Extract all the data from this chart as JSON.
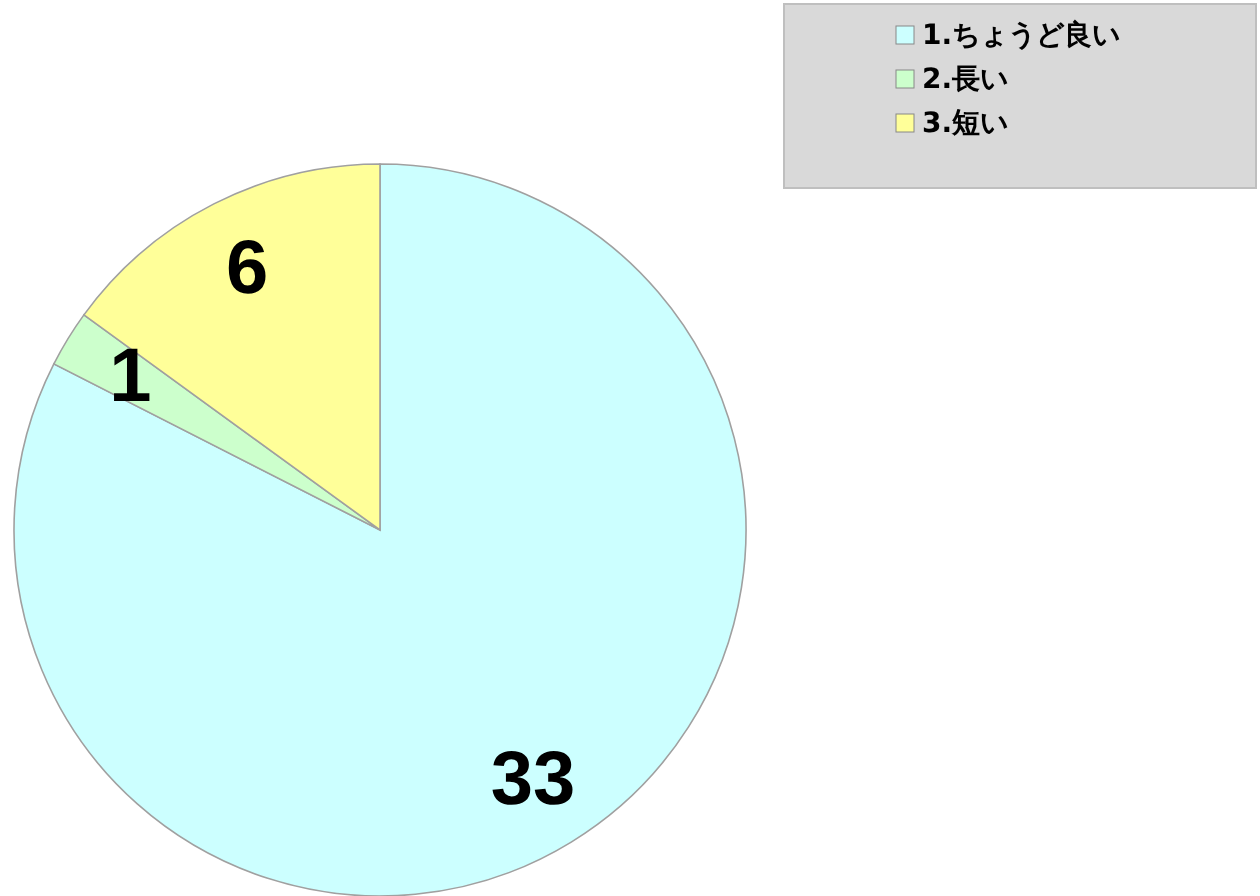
{
  "chart_data": {
    "type": "pie",
    "categories": [
      "1.ちょうど良い",
      "2.長い",
      "3.短い"
    ],
    "values": [
      33,
      1,
      6
    ],
    "colors": [
      "#ccffff",
      "#ccffcc",
      "#ffff99"
    ],
    "data_labels": true,
    "legend": "top right"
  }
}
